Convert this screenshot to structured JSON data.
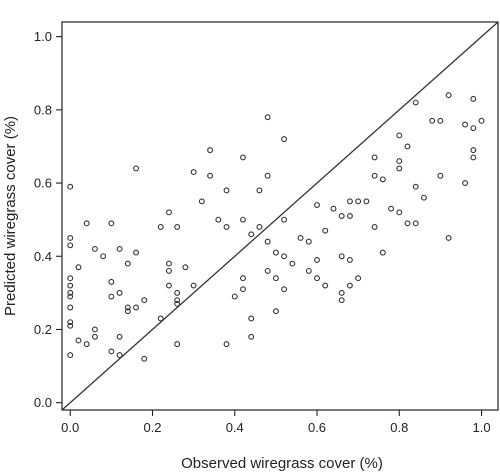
{
  "chart_data": {
    "type": "scatter",
    "title": "",
    "xlabel": "Observed wiregrass cover (%)",
    "ylabel": "Predicted wiregrass cover (%)",
    "xlim": [
      -0.02,
      1.04
    ],
    "ylim": [
      -0.02,
      1.04
    ],
    "xticks": [
      0.0,
      0.2,
      0.4,
      0.6,
      0.8,
      1.0
    ],
    "yticks": [
      0.0,
      0.2,
      0.4,
      0.6,
      0.8,
      1.0
    ],
    "xtick_labels": [
      "0.0",
      "0.2",
      "0.4",
      "0.6",
      "0.8",
      "1.0"
    ],
    "ytick_labels": [
      "0.0",
      "0.2",
      "0.4",
      "0.6",
      "0.8",
      "1.0"
    ],
    "grid": false,
    "reference_line": {
      "type": "1:1",
      "from": [
        -0.02,
        -0.02
      ],
      "to": [
        1.04,
        1.04
      ]
    },
    "marker": "open-circle",
    "colors": {
      "points": "#333333",
      "axes": "#222222",
      "reference_line": "#333333"
    },
    "points": [
      [
        0.0,
        0.59
      ],
      [
        0.0,
        0.45
      ],
      [
        0.0,
        0.43
      ],
      [
        0.0,
        0.34
      ],
      [
        0.0,
        0.32
      ],
      [
        0.0,
        0.3
      ],
      [
        0.0,
        0.29
      ],
      [
        0.0,
        0.26
      ],
      [
        0.0,
        0.22
      ],
      [
        0.0,
        0.21
      ],
      [
        0.0,
        0.13
      ],
      [
        0.02,
        0.37
      ],
      [
        0.02,
        0.17
      ],
      [
        0.04,
        0.49
      ],
      [
        0.04,
        0.16
      ],
      [
        0.06,
        0.42
      ],
      [
        0.06,
        0.2
      ],
      [
        0.06,
        0.18
      ],
      [
        0.08,
        0.4
      ],
      [
        0.1,
        0.49
      ],
      [
        0.1,
        0.33
      ],
      [
        0.1,
        0.29
      ],
      [
        0.1,
        0.14
      ],
      [
        0.12,
        0.42
      ],
      [
        0.12,
        0.3
      ],
      [
        0.12,
        0.18
      ],
      [
        0.12,
        0.13
      ],
      [
        0.14,
        0.38
      ],
      [
        0.14,
        0.26
      ],
      [
        0.14,
        0.25
      ],
      [
        0.16,
        0.64
      ],
      [
        0.16,
        0.41
      ],
      [
        0.16,
        0.26
      ],
      [
        0.18,
        0.28
      ],
      [
        0.18,
        0.12
      ],
      [
        0.22,
        0.48
      ],
      [
        0.22,
        0.23
      ],
      [
        0.24,
        0.52
      ],
      [
        0.24,
        0.38
      ],
      [
        0.24,
        0.36
      ],
      [
        0.24,
        0.32
      ],
      [
        0.26,
        0.48
      ],
      [
        0.26,
        0.3
      ],
      [
        0.26,
        0.28
      ],
      [
        0.26,
        0.27
      ],
      [
        0.26,
        0.16
      ],
      [
        0.28,
        0.37
      ],
      [
        0.3,
        0.63
      ],
      [
        0.3,
        0.32
      ],
      [
        0.32,
        0.55
      ],
      [
        0.34,
        0.69
      ],
      [
        0.34,
        0.62
      ],
      [
        0.36,
        0.5
      ],
      [
        0.38,
        0.58
      ],
      [
        0.38,
        0.48
      ],
      [
        0.38,
        0.16
      ],
      [
        0.4,
        0.29
      ],
      [
        0.42,
        0.67
      ],
      [
        0.42,
        0.5
      ],
      [
        0.42,
        0.34
      ],
      [
        0.42,
        0.31
      ],
      [
        0.44,
        0.46
      ],
      [
        0.44,
        0.23
      ],
      [
        0.44,
        0.18
      ],
      [
        0.46,
        0.58
      ],
      [
        0.46,
        0.48
      ],
      [
        0.48,
        0.78
      ],
      [
        0.48,
        0.62
      ],
      [
        0.48,
        0.44
      ],
      [
        0.48,
        0.36
      ],
      [
        0.5,
        0.41
      ],
      [
        0.5,
        0.34
      ],
      [
        0.5,
        0.25
      ],
      [
        0.52,
        0.72
      ],
      [
        0.52,
        0.5
      ],
      [
        0.52,
        0.4
      ],
      [
        0.52,
        0.31
      ],
      [
        0.54,
        0.38
      ],
      [
        0.56,
        0.45
      ],
      [
        0.58,
        0.44
      ],
      [
        0.58,
        0.36
      ],
      [
        0.6,
        0.54
      ],
      [
        0.6,
        0.39
      ],
      [
        0.6,
        0.34
      ],
      [
        0.62,
        0.47
      ],
      [
        0.62,
        0.32
      ],
      [
        0.64,
        0.53
      ],
      [
        0.66,
        0.51
      ],
      [
        0.66,
        0.4
      ],
      [
        0.66,
        0.3
      ],
      [
        0.66,
        0.28
      ],
      [
        0.68,
        0.55
      ],
      [
        0.68,
        0.51
      ],
      [
        0.68,
        0.39
      ],
      [
        0.68,
        0.32
      ],
      [
        0.7,
        0.55
      ],
      [
        0.7,
        0.34
      ],
      [
        0.72,
        0.55
      ],
      [
        0.74,
        0.67
      ],
      [
        0.74,
        0.62
      ],
      [
        0.74,
        0.48
      ],
      [
        0.76,
        0.61
      ],
      [
        0.76,
        0.41
      ],
      [
        0.78,
        0.53
      ],
      [
        0.8,
        0.73
      ],
      [
        0.8,
        0.66
      ],
      [
        0.8,
        0.64
      ],
      [
        0.8,
        0.52
      ],
      [
        0.82,
        0.7
      ],
      [
        0.82,
        0.49
      ],
      [
        0.84,
        0.82
      ],
      [
        0.84,
        0.59
      ],
      [
        0.84,
        0.49
      ],
      [
        0.86,
        0.56
      ],
      [
        0.88,
        0.77
      ],
      [
        0.9,
        0.77
      ],
      [
        0.9,
        0.62
      ],
      [
        0.92,
        0.84
      ],
      [
        0.92,
        0.45
      ],
      [
        0.96,
        0.76
      ],
      [
        0.96,
        0.6
      ],
      [
        0.98,
        0.83
      ],
      [
        0.98,
        0.75
      ],
      [
        0.98,
        0.69
      ],
      [
        0.98,
        0.67
      ],
      [
        1.0,
        0.77
      ]
    ]
  }
}
